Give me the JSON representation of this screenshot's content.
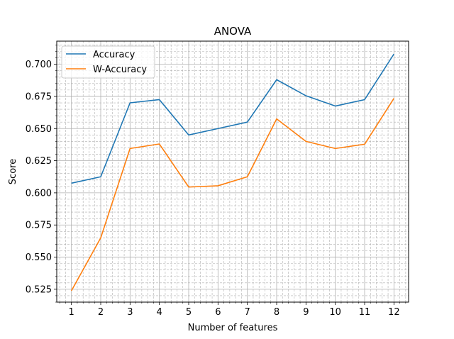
{
  "chart_data": {
    "type": "line",
    "title": "ANOVA",
    "xlabel": "Number of features",
    "ylabel": "Score",
    "x": [
      1,
      2,
      3,
      4,
      5,
      6,
      7,
      8,
      9,
      10,
      11,
      12
    ],
    "xlim": [
      0.5,
      12.5
    ],
    "ylim": [
      0.515,
      0.718
    ],
    "yticks": [
      0.525,
      0.55,
      0.575,
      0.6,
      0.625,
      0.65,
      0.675,
      0.7
    ],
    "ytick_labels": [
      "0.525",
      "0.550",
      "0.575",
      "0.600",
      "0.625",
      "0.650",
      "0.675",
      "0.700"
    ],
    "xtick_labels": [
      "1",
      "2",
      "3",
      "4",
      "5",
      "6",
      "7",
      "8",
      "9",
      "10",
      "11",
      "12"
    ],
    "grid": true,
    "minor_grid": true,
    "legend_position": "top-left",
    "series": [
      {
        "name": "Accuracy",
        "color": "#1f77b4",
        "values": [
          0.6075,
          0.6125,
          0.67,
          0.6725,
          0.645,
          0.65,
          0.655,
          0.688,
          0.6755,
          0.6675,
          0.6725,
          0.708
        ]
      },
      {
        "name": "W-Accuracy",
        "color": "#ff7f0e",
        "values": [
          0.5238,
          0.565,
          0.6345,
          0.638,
          0.6045,
          0.6055,
          0.6125,
          0.6575,
          0.64,
          0.6345,
          0.6378,
          0.6735
        ]
      }
    ]
  }
}
